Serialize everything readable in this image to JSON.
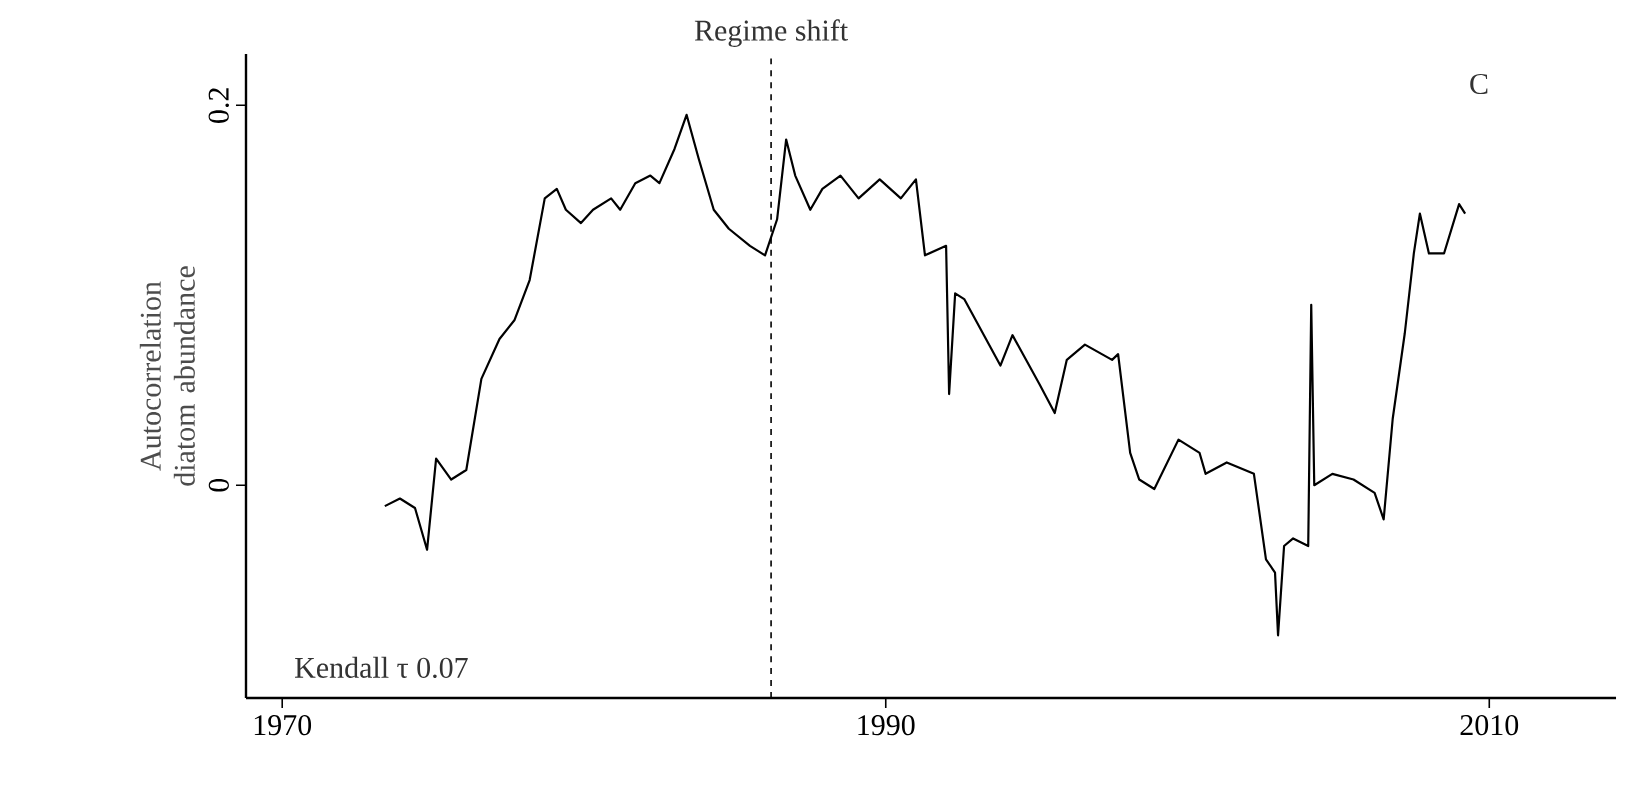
{
  "chart_data": {
    "type": "line",
    "ylabel": "Autocorrelation diatom abundance",
    "x": [
      1973.4,
      1973.9,
      1974.4,
      1974.8,
      1975.1,
      1975.6,
      1976.1,
      1976.6,
      1977.2,
      1977.7,
      1978.2,
      1978.7,
      1979.1,
      1979.4,
      1979.9,
      1980.3,
      1980.9,
      1981.2,
      1981.7,
      1982.2,
      1982.5,
      1983.0,
      1983.4,
      1983.8,
      1984.3,
      1984.8,
      1985.5,
      1986.0,
      1986.4,
      1986.7,
      1987.0,
      1987.5,
      1987.9,
      1988.5,
      1989.1,
      1989.8,
      1990.5,
      1991.0,
      1991.3,
      1992.0,
      1992.1,
      1992.3,
      1992.6,
      1993.8,
      1994.2,
      1995.1,
      1995.6,
      1996.0,
      1996.6,
      1997.5,
      1997.7,
      1998.1,
      1998.4,
      1998.9,
      1999.7,
      2000.4,
      2000.6,
      2001.3,
      2002.2,
      2002.6,
      2002.9,
      2003.0,
      2003.2,
      2003.5,
      2004.0,
      2004.1,
      2004.2,
      2004.8,
      2005.5,
      2006.2,
      2006.5,
      2006.8,
      2007.2,
      2007.5,
      2007.7,
      2008.0,
      2008.5,
      2009.0,
      2009.2
    ],
    "series": [
      {
        "color": "#000000",
        "values": [
          -0.011,
          -0.007,
          -0.012,
          -0.034,
          0.014,
          0.003,
          0.008,
          0.056,
          0.077,
          0.087,
          0.108,
          0.151,
          0.156,
          0.145,
          0.138,
          0.145,
          0.151,
          0.145,
          0.159,
          0.163,
          0.159,
          0.177,
          0.195,
          0.172,
          0.145,
          0.135,
          0.126,
          0.121,
          0.14,
          0.182,
          0.163,
          0.145,
          0.156,
          0.163,
          0.151,
          0.161,
          0.151,
          0.161,
          0.121,
          0.126,
          0.048,
          0.101,
          0.098,
          0.063,
          0.079,
          0.053,
          0.038,
          0.066,
          0.074,
          0.066,
          0.069,
          0.017,
          0.003,
          -0.002,
          0.024,
          0.017,
          0.006,
          0.012,
          0.006,
          -0.039,
          -0.046,
          -0.079,
          -0.032,
          -0.028,
          -0.032,
          0.095,
          0.0,
          0.006,
          0.003,
          -0.004,
          -0.018,
          0.035,
          0.08,
          0.122,
          0.143,
          0.122,
          0.122,
          0.148,
          0.143
        ]
      }
    ],
    "xlim": [
      1968.8,
      2014.2
    ],
    "ylim": [
      -0.112,
      0.227
    ],
    "xticks": [
      1970,
      1990,
      2010
    ],
    "yticks": [
      0,
      0.2
    ],
    "ref_lines": [
      {
        "axis": "x",
        "value": 1986.2,
        "label": "Regime shift",
        "line_style": "dashed",
        "color": "#000000"
      }
    ],
    "annotations": [
      "Kendall τ 0.07",
      "C"
    ]
  }
}
